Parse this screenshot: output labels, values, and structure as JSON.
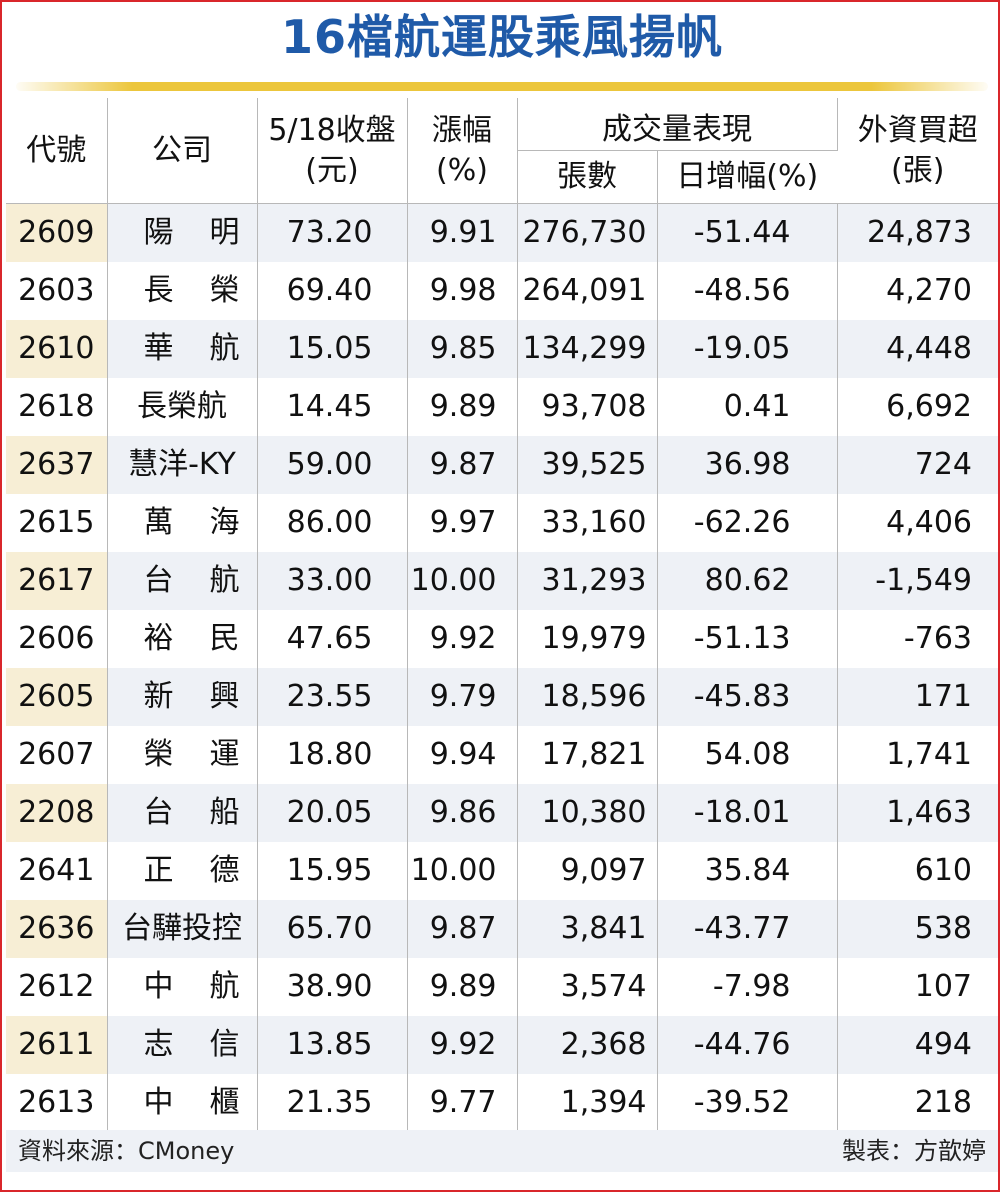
{
  "title": "16檔航運股乘風揚帆",
  "headers": {
    "code": "代號",
    "company": "公司",
    "close_line1": "5/18收盤",
    "close_line2": "(元)",
    "change_line1": "漲幅",
    "change_line2": "(%)",
    "volume_group": "成交量表現",
    "volume_lots": "張數",
    "volume_daily_change": "日增幅(%)",
    "foreign_line1": "外資買超",
    "foreign_line2": "(張)"
  },
  "rows": [
    {
      "code": "2609",
      "company": "陽明",
      "close": "73.20",
      "change": "9.91",
      "volume": "276,730",
      "volume_change": "-51.44",
      "foreign_buy": "24,873"
    },
    {
      "code": "2603",
      "company": "長榮",
      "close": "69.40",
      "change": "9.98",
      "volume": "264,091",
      "volume_change": "-48.56",
      "foreign_buy": "4,270"
    },
    {
      "code": "2610",
      "company": "華航",
      "close": "15.05",
      "change": "9.85",
      "volume": "134,299",
      "volume_change": "-19.05",
      "foreign_buy": "4,448"
    },
    {
      "code": "2618",
      "company": "長榮航",
      "close": "14.45",
      "change": "9.89",
      "volume": "93,708",
      "volume_change": "0.41",
      "foreign_buy": "6,692"
    },
    {
      "code": "2637",
      "company": "慧洋-KY",
      "close": "59.00",
      "change": "9.87",
      "volume": "39,525",
      "volume_change": "36.98",
      "foreign_buy": "724"
    },
    {
      "code": "2615",
      "company": "萬海",
      "close": "86.00",
      "change": "9.97",
      "volume": "33,160",
      "volume_change": "-62.26",
      "foreign_buy": "4,406"
    },
    {
      "code": "2617",
      "company": "台航",
      "close": "33.00",
      "change": "10.00",
      "volume": "31,293",
      "volume_change": "80.62",
      "foreign_buy": "-1,549"
    },
    {
      "code": "2606",
      "company": "裕民",
      "close": "47.65",
      "change": "9.92",
      "volume": "19,979",
      "volume_change": "-51.13",
      "foreign_buy": "-763"
    },
    {
      "code": "2605",
      "company": "新興",
      "close": "23.55",
      "change": "9.79",
      "volume": "18,596",
      "volume_change": "-45.83",
      "foreign_buy": "171"
    },
    {
      "code": "2607",
      "company": "榮運",
      "close": "18.80",
      "change": "9.94",
      "volume": "17,821",
      "volume_change": "54.08",
      "foreign_buy": "1,741"
    },
    {
      "code": "2208",
      "company": "台船",
      "close": "20.05",
      "change": "9.86",
      "volume": "10,380",
      "volume_change": "-18.01",
      "foreign_buy": "1,463"
    },
    {
      "code": "2641",
      "company": "正德",
      "close": "15.95",
      "change": "10.00",
      "volume": "9,097",
      "volume_change": "35.84",
      "foreign_buy": "610"
    },
    {
      "code": "2636",
      "company": "台驊投控",
      "close": "65.70",
      "change": "9.87",
      "volume": "3,841",
      "volume_change": "-43.77",
      "foreign_buy": "538"
    },
    {
      "code": "2612",
      "company": "中航",
      "close": "38.90",
      "change": "9.89",
      "volume": "3,574",
      "volume_change": "-7.98",
      "foreign_buy": "107"
    },
    {
      "code": "2611",
      "company": "志信",
      "close": "13.85",
      "change": "9.92",
      "volume": "2,368",
      "volume_change": "-44.76",
      "foreign_buy": "494"
    },
    {
      "code": "2613",
      "company": "中櫃",
      "close": "21.35",
      "change": "9.77",
      "volume": "1,394",
      "volume_change": "-39.52",
      "foreign_buy": "218"
    }
  ],
  "footer": {
    "source": "資料來源：CMoney",
    "credit": "製表：方歆婷"
  },
  "colors": {
    "title": "#1f5aa8",
    "frame": "#d9262b",
    "title_rule": "#ecc63c",
    "row_band": "#eef1f6",
    "code_band": "#f7eed5"
  }
}
